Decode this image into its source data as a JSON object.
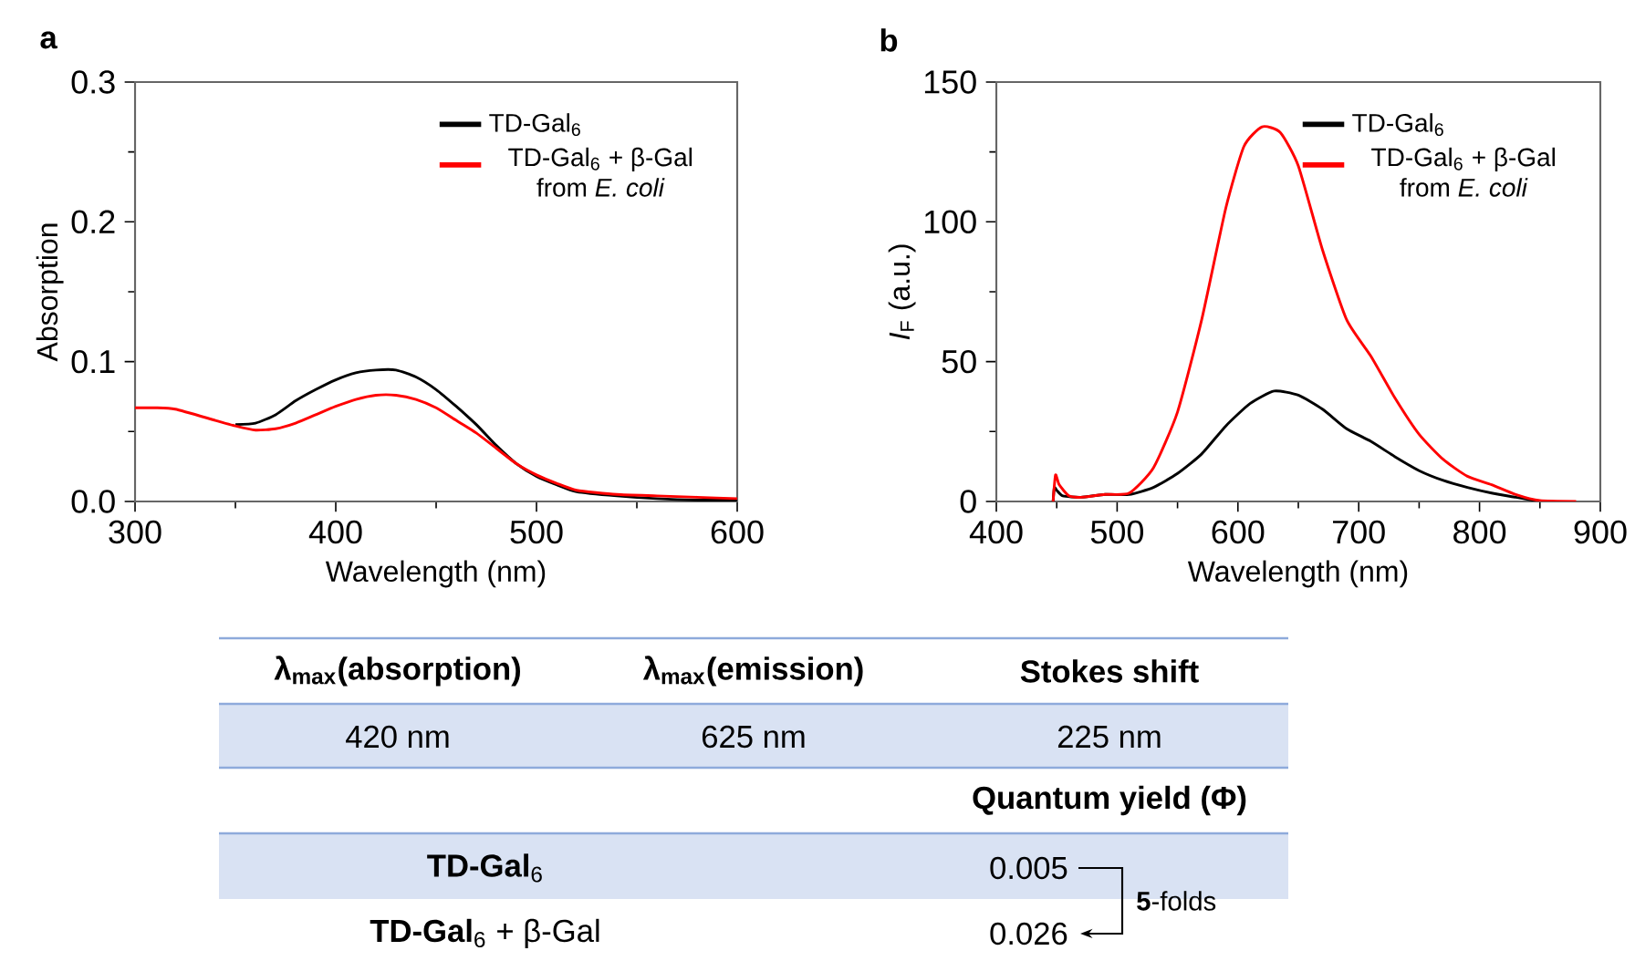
{
  "chart_data": [
    {
      "type": "line",
      "title": "a",
      "xlabel": "Wavelength (nm)",
      "ylabel": "Absorption",
      "xlim": [
        300,
        600
      ],
      "xticks": [
        300,
        400,
        500,
        600
      ],
      "ylim": [
        0,
        0.3
      ],
      "yticks": [
        {
          "value": 0,
          "label": "0.0"
        },
        0.1,
        0.2,
        0.3
      ],
      "legend": "top right",
      "series": [
        {
          "name": "TD-Gal$_{6}$",
          "color": "#000000",
          "x": [
            350,
            360,
            370,
            380,
            390,
            400,
            410,
            420,
            430,
            440,
            450,
            460,
            470,
            480,
            490,
            500,
            510,
            520,
            540,
            560,
            580,
            600
          ],
          "values": [
            0.055,
            0.056,
            0.062,
            0.072,
            0.08,
            0.087,
            0.092,
            0.094,
            0.094,
            0.089,
            0.08,
            0.068,
            0.055,
            0.04,
            0.027,
            0.018,
            0.012,
            0.007,
            0.004,
            0.002,
            0.001,
            0.001
          ]
        },
        {
          "name": "TD-Gal$_{6}$ + β-Gal from *E. coli*",
          "color": "#ff0000",
          "x": [
            300,
            310,
            320,
            340,
            350,
            360,
            370,
            380,
            390,
            400,
            410,
            420,
            430,
            440,
            450,
            460,
            470,
            480,
            490,
            500,
            510,
            520,
            540,
            560,
            580,
            600
          ],
          "values": [
            0.067,
            0.067,
            0.066,
            0.058,
            0.054,
            0.051,
            0.052,
            0.056,
            0.062,
            0.068,
            0.073,
            0.076,
            0.076,
            0.073,
            0.067,
            0.058,
            0.049,
            0.038,
            0.027,
            0.019,
            0.013,
            0.008,
            0.005,
            0.004,
            0.003,
            0.002
          ]
        }
      ]
    },
    {
      "type": "line",
      "title": "b",
      "xlabel": "Wavelength (nm)",
      "ylabel": "*I*$_{F}$ (a.u.)",
      "xlim": [
        400,
        900
      ],
      "xticks": [
        400,
        500,
        600,
        700,
        800,
        900
      ],
      "ylim": [
        0,
        150
      ],
      "yticks": [
        0,
        50,
        100,
        150
      ],
      "legend": "top right",
      "series": [
        {
          "name": "TD-Gal$_{6}$",
          "color": "#000000",
          "x": [
            447,
            448,
            450,
            455,
            470,
            490,
            510,
            530,
            550,
            570,
            590,
            610,
            630,
            650,
            670,
            690,
            710,
            730,
            750,
            770,
            790,
            810,
            830,
            850
          ],
          "values": [
            0,
            5,
            4,
            2,
            1.5,
            2.5,
            2.5,
            5,
            10,
            17,
            27,
            35,
            39.5,
            38,
            33,
            26,
            21.5,
            16,
            11,
            7.5,
            5,
            3,
            1.5,
            0
          ]
        },
        {
          "name": "TD-Gal$_{6}$ + β-Gal from *E. coli*",
          "color": "#ff0000",
          "x": [
            447,
            449,
            452,
            460,
            470,
            490,
            510,
            530,
            550,
            570,
            590,
            605,
            620,
            635,
            650,
            670,
            690,
            710,
            730,
            750,
            770,
            790,
            810,
            830,
            850,
            880
          ],
          "values": [
            0,
            9.5,
            6,
            2,
            1.5,
            2.5,
            3,
            12,
            32,
            65,
            105,
            127,
            134,
            132,
            120,
            90,
            65,
            52,
            37,
            24,
            15,
            9,
            6,
            2.5,
            0.3,
            0
          ]
        }
      ]
    },
    {
      "type": "other",
      "annotations": [
        "λ$_{max}$(absorption)",
        "λ$_{max}$(emission)",
        "Stokes shift",
        "420 nm",
        "625 nm",
        "225 nm",
        "Quantum yield (Φ)",
        "**TD-Gal**$_{6}$",
        "**TD-Gal**$_{6}$ + β-Gal",
        "0.005",
        "0.026",
        "**5**-folds"
      ]
    }
  ]
}
